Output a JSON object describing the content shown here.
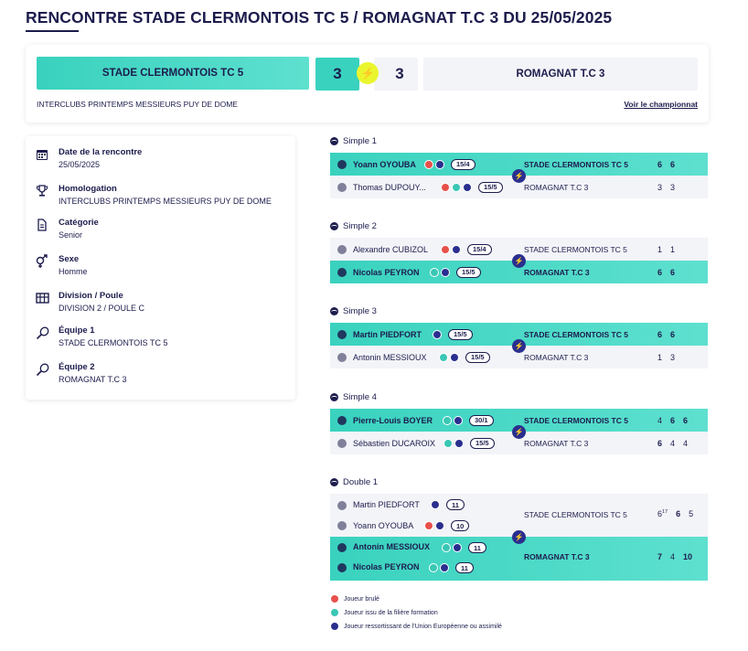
{
  "page": {
    "title": "RENCONTRE STADE CLERMONTOIS TC 5 / ROMAGNAT T.C 3 DU 25/05/2025"
  },
  "score": {
    "home_team": "STADE CLERMONTOIS TC 5",
    "home_score": "3",
    "away_score": "3",
    "away_team": "ROMAGNAT T.C 3",
    "competition": "INTERCLUBS PRINTEMPS MESSIEURS PUY DE DOME",
    "championship_link": "Voir le championnat",
    "bolt_icon": "lightning-icon"
  },
  "info": {
    "items": [
      {
        "label": "Date de la rencontre",
        "value": "25/05/2025",
        "icon": "calendar-icon"
      },
      {
        "label": "Homologation",
        "value": "INTERCLUBS PRINTEMPS MESSIEURS PUY DE DOME",
        "icon": "trophy-icon"
      },
      {
        "label": "Catégorie",
        "value": "Senior",
        "icon": "document-icon"
      },
      {
        "label": "Sexe",
        "value": "Homme",
        "icon": "gender-icon"
      },
      {
        "label": "Division / Poule",
        "value": "DIVISION 2 / POULE C",
        "icon": "grid-icon"
      },
      {
        "label": "Équipe 1",
        "value": "STADE CLERMONTOIS TC 5",
        "icon": "racket-icon"
      },
      {
        "label": "Équipe 2",
        "value": "ROMAGNAT T.C 3",
        "icon": "racket-icon"
      }
    ]
  },
  "matches": [
    {
      "title": "Simple 1",
      "rows": [
        {
          "player": "Yoann OYOUBA",
          "rank": "15/4",
          "team": "STADE CLERMONTOIS TC 5",
          "sets": [
            "6",
            "6"
          ],
          "winner": true
        },
        {
          "player": "Thomas DUPOUY...",
          "rank": "15/5",
          "team": "ROMAGNAT T.C 3",
          "sets": [
            "3",
            "3"
          ],
          "winner": false
        }
      ]
    },
    {
      "title": "Simple 2",
      "rows": [
        {
          "player": "Alexandre CUBIZOL",
          "rank": "15/4",
          "team": "STADE CLERMONTOIS TC 5",
          "sets": [
            "1",
            "1"
          ],
          "winner": false
        },
        {
          "player": "Nicolas PEYRON",
          "rank": "15/5",
          "team": "ROMAGNAT T.C 3",
          "sets": [
            "6",
            "6"
          ],
          "winner": true
        }
      ]
    },
    {
      "title": "Simple 3",
      "rows": [
        {
          "player": "Martin PIEDFORT",
          "rank": "15/5",
          "team": "STADE CLERMONTOIS TC 5",
          "sets": [
            "6",
            "6"
          ],
          "winner": true
        },
        {
          "player": "Antonin MESSIOUX",
          "rank": "15/5",
          "team": "ROMAGNAT T.C 3",
          "sets": [
            "1",
            "3"
          ],
          "winner": false
        }
      ]
    },
    {
      "title": "Simple 4",
      "rows": [
        {
          "player": "Pierre-Louis BOYER",
          "rank": "30/1",
          "team": "STADE CLERMONTOIS TC 5",
          "sets": [
            "4",
            "6",
            "6"
          ],
          "winner": true
        },
        {
          "player": "Sébastien DUCAROIX",
          "rank": "15/5",
          "team": "ROMAGNAT T.C 3",
          "sets": [
            "6",
            "4",
            "4"
          ],
          "winner": false
        }
      ]
    },
    {
      "title": "Double 1",
      "team_home": "STADE CLERMONTOIS TC 5",
      "team_away": "ROMAGNAT T.C 3",
      "home_players": [
        {
          "player": "Martin PIEDFORT",
          "rank": "11"
        },
        {
          "player": "Yoann OYOUBA",
          "rank": "10"
        }
      ],
      "away_players": [
        {
          "player": "Antonin MESSIOUX",
          "rank": "11"
        },
        {
          "player": "Nicolas PEYRON",
          "rank": "11"
        }
      ],
      "home_sets": [
        "6",
        "6",
        "5"
      ],
      "home_tiebreak": "17",
      "away_sets": [
        "7",
        "4",
        "10"
      ]
    }
  ],
  "legend": [
    {
      "color": "#e8504a",
      "text": "Joueur brulé"
    },
    {
      "color": "#39c7b4",
      "text": "Joueur issu de la filière formation"
    },
    {
      "color": "#2a2f8f",
      "text": "Joueur ressortissant de l'Union Européenne ou assimilé"
    }
  ]
}
